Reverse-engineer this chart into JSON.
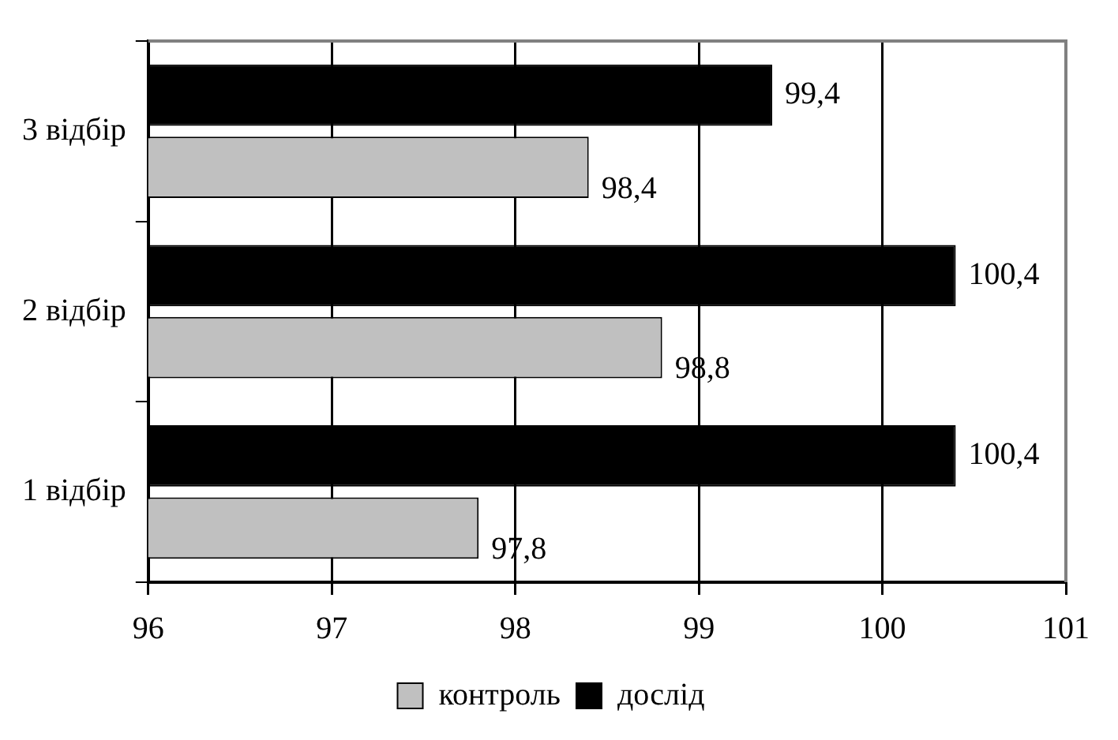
{
  "chart_data": {
    "type": "bar",
    "orientation": "horizontal",
    "categories": [
      "3 відбір",
      "2 відбір",
      "1 відбір"
    ],
    "series": [
      {
        "name": "контроль",
        "color": "#c0c0c0",
        "values": [
          98.4,
          98.8,
          97.8
        ],
        "value_labels": [
          "98,4",
          "98,8",
          "97,8"
        ]
      },
      {
        "name": "дослід",
        "color": "#000000",
        "values": [
          99.4,
          100.4,
          100.4
        ],
        "value_labels": [
          "99,4",
          "100,4",
          "100,4"
        ]
      }
    ],
    "xlim": [
      96,
      101
    ],
    "xticks": [
      96,
      97,
      98,
      99,
      100,
      101
    ],
    "grid": "x",
    "legend": "bottom"
  }
}
